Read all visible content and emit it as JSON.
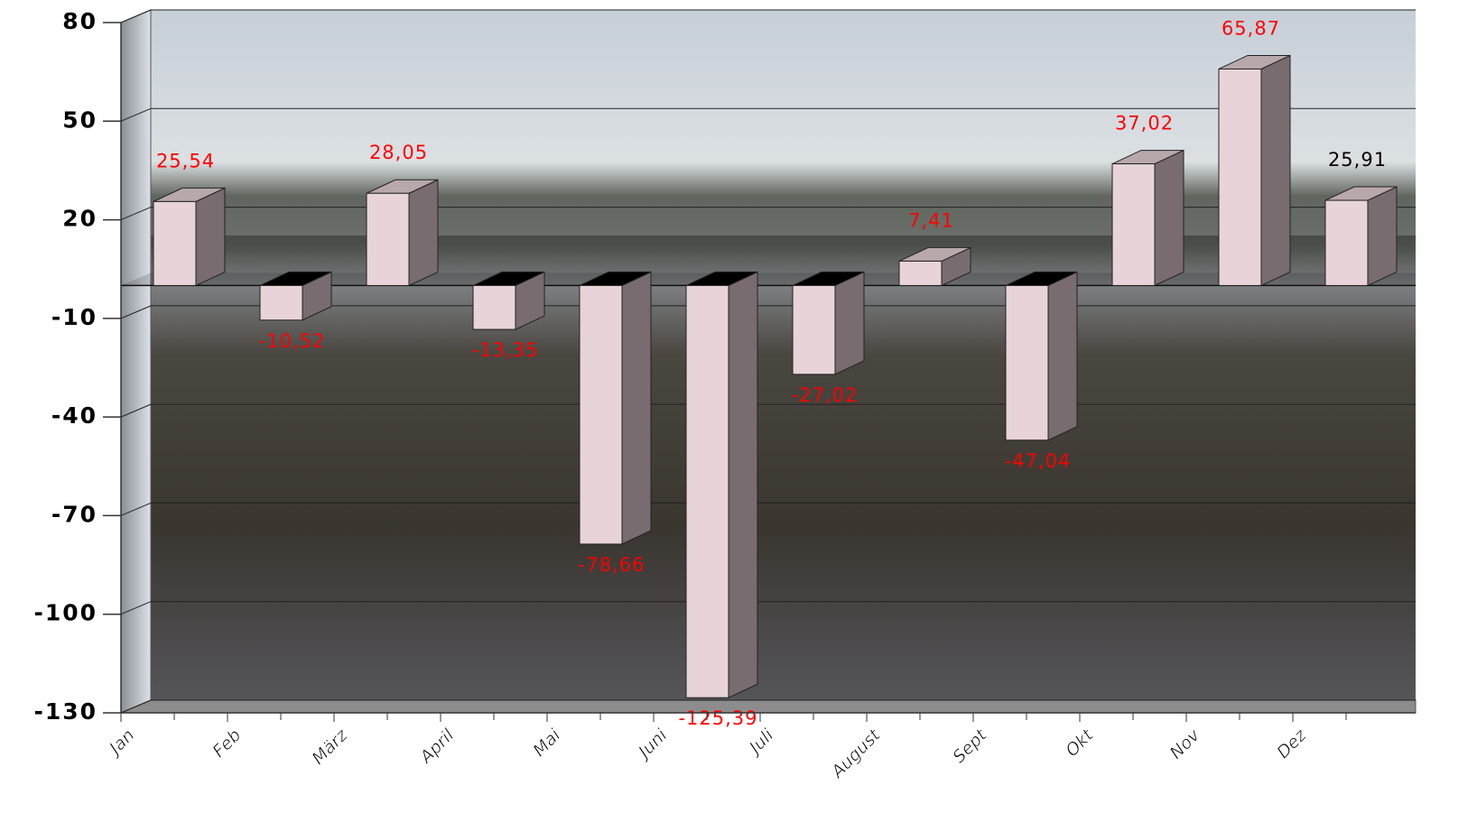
{
  "chart_data": {
    "type": "bar3d",
    "categories": [
      "Jan",
      "Feb",
      "März",
      "April",
      "Mai",
      "Juni",
      "Juli",
      "August",
      "Sept",
      "Okt",
      "Nov",
      "Dez"
    ],
    "values": [
      25.54,
      -10.52,
      28.05,
      -13.35,
      -78.66,
      -125.39,
      -27.02,
      7.41,
      -47.04,
      37.02,
      65.87,
      25.91
    ],
    "value_labels": [
      "25,54",
      "-10,52",
      "28,05",
      "-13,35",
      "-78,66",
      "-125,39",
      "-27,02",
      "7,41",
      "-47,04",
      "37,02",
      "65,87",
      "25,91"
    ],
    "value_label_colors": [
      "#ff0000",
      "#ff0000",
      "#ff0000",
      "#ff0000",
      "#ff0000",
      "#ff0000",
      "#ff0000",
      "#ff0000",
      "#ff0000",
      "#ff0000",
      "#ff0000",
      "#000000"
    ],
    "color": "#e8d4d8",
    "ylim": [
      -130,
      80
    ],
    "yticks": [
      80,
      50,
      20,
      -10,
      -40,
      -70,
      -100,
      -130
    ],
    "grid": true
  }
}
